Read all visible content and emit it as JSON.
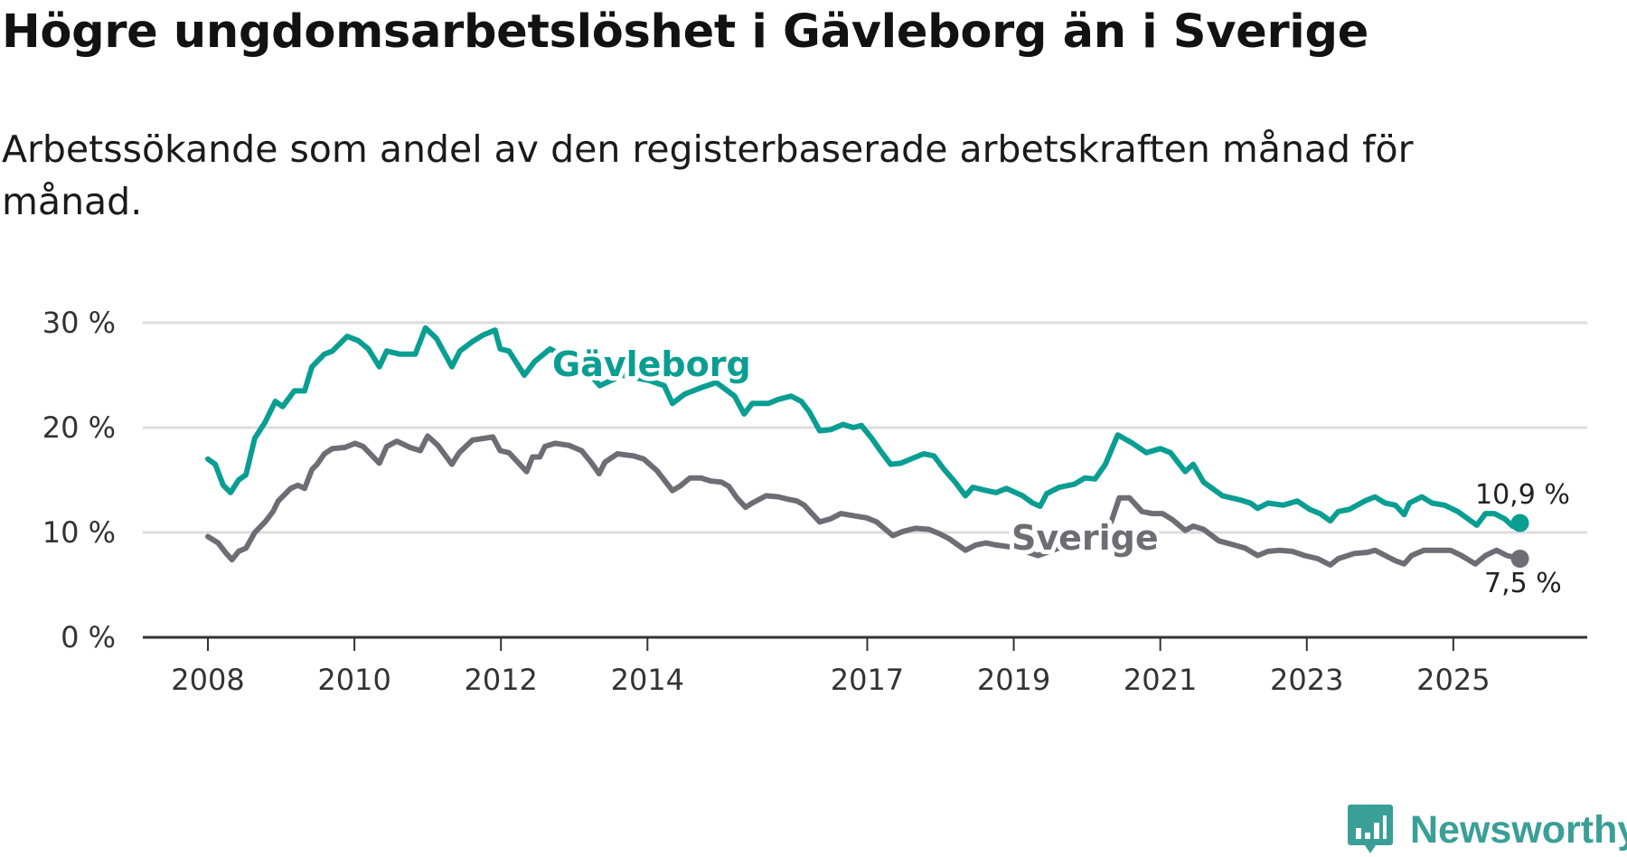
{
  "header": {
    "title": "Högre ungdomsarbetslöshet i Gävleborg än i Sverige",
    "subtitle": "Arbetssökande som andel av den registerbaserade arbetskraften månad för månad."
  },
  "brand": {
    "name": "Newsworthy",
    "icon": "newsworthy-logo-icon",
    "color": "#3a9f97"
  },
  "chart_data": {
    "type": "line",
    "title": "Högre ungdomsarbetslöshet i Gävleborg än i Sverige",
    "xlabel": "",
    "ylabel": "",
    "ylim": [
      0,
      30
    ],
    "xlim": [
      2007.55,
      2027.3
    ],
    "yticks": [
      {
        "v": 0,
        "label": "0 %"
      },
      {
        "v": 10,
        "label": "10 %"
      },
      {
        "v": 20,
        "label": "20 %"
      },
      {
        "v": 30,
        "label": "30 %"
      }
    ],
    "xticks": [
      {
        "v": 2008,
        "label": "2008"
      },
      {
        "v": 2010,
        "label": "2010"
      },
      {
        "v": 2012,
        "label": "2012"
      },
      {
        "v": 2014,
        "label": "2014"
      },
      {
        "v": 2017,
        "label": "2017"
      },
      {
        "v": 2019,
        "label": "2019"
      },
      {
        "v": 2021,
        "label": "2021"
      },
      {
        "v": 2023,
        "label": "2023"
      },
      {
        "v": 2025,
        "label": "2025"
      }
    ],
    "grid": true,
    "series": [
      {
        "name": "Gävleborg",
        "color": "#0a9e92",
        "end_label": "10,9 %",
        "points": [
          [
            2008.0,
            17
          ],
          [
            2008.1,
            16.5
          ],
          [
            2008.21,
            14.5
          ],
          [
            2008.31,
            13.8
          ],
          [
            2008.42,
            15
          ],
          [
            2008.52,
            15.5
          ],
          [
            2008.64,
            19
          ],
          [
            2008.78,
            20.5
          ],
          [
            2008.92,
            22.5
          ],
          [
            2009.02,
            22
          ],
          [
            2009.18,
            23.5
          ],
          [
            2009.32,
            23.5
          ],
          [
            2009.42,
            25.8
          ],
          [
            2009.59,
            27
          ],
          [
            2009.7,
            27.3
          ],
          [
            2009.9,
            28.7
          ],
          [
            2010.05,
            28.3
          ],
          [
            2010.19,
            27.5
          ],
          [
            2010.34,
            25.8
          ],
          [
            2010.44,
            27.3
          ],
          [
            2010.62,
            27
          ],
          [
            2010.83,
            27
          ],
          [
            2010.97,
            29.5
          ],
          [
            2011.12,
            28.5
          ],
          [
            2011.33,
            25.8
          ],
          [
            2011.44,
            27.3
          ],
          [
            2011.61,
            28.2
          ],
          [
            2011.75,
            28.8
          ],
          [
            2011.92,
            29.3
          ],
          [
            2011.99,
            27.5
          ],
          [
            2012.11,
            27.3
          ],
          [
            2012.32,
            25
          ],
          [
            2012.46,
            26.3
          ],
          [
            2012.67,
            27.5
          ],
          [
            2013.1,
            26
          ],
          [
            2013.35,
            24
          ],
          [
            2013.66,
            25
          ],
          [
            2014.02,
            24.5
          ],
          [
            2014.23,
            24
          ],
          [
            2014.34,
            22.3
          ],
          [
            2014.51,
            23.2
          ],
          [
            2014.73,
            23.8
          ],
          [
            2014.94,
            24.3
          ],
          [
            2015.19,
            23
          ],
          [
            2015.32,
            21.3
          ],
          [
            2015.43,
            22.3
          ],
          [
            2015.65,
            22.3
          ],
          [
            2015.79,
            22.7
          ],
          [
            2015.96,
            23
          ],
          [
            2016.1,
            22.5
          ],
          [
            2016.21,
            21.5
          ],
          [
            2016.35,
            19.7
          ],
          [
            2016.5,
            19.8
          ],
          [
            2016.67,
            20.3
          ],
          [
            2016.81,
            20
          ],
          [
            2016.92,
            20.2
          ],
          [
            2017.06,
            19
          ],
          [
            2017.18,
            17.8
          ],
          [
            2017.32,
            16.5
          ],
          [
            2017.46,
            16.6
          ],
          [
            2017.63,
            17.1
          ],
          [
            2017.77,
            17.5
          ],
          [
            2017.91,
            17.3
          ],
          [
            2018.05,
            16
          ],
          [
            2018.2,
            14.8
          ],
          [
            2018.34,
            13.5
          ],
          [
            2018.44,
            14.3
          ],
          [
            2018.62,
            14
          ],
          [
            2018.76,
            13.8
          ],
          [
            2018.9,
            14.2
          ],
          [
            2019.12,
            13.5
          ],
          [
            2019.26,
            12.8
          ],
          [
            2019.36,
            12.5
          ],
          [
            2019.45,
            13.7
          ],
          [
            2019.62,
            14.3
          ],
          [
            2019.83,
            14.6
          ],
          [
            2019.97,
            15.2
          ],
          [
            2020.11,
            15.1
          ],
          [
            2020.25,
            16.5
          ],
          [
            2020.42,
            19.3
          ],
          [
            2020.6,
            18.6
          ],
          [
            2020.81,
            17.6
          ],
          [
            2021.0,
            18
          ],
          [
            2021.14,
            17.6
          ],
          [
            2021.34,
            15.8
          ],
          [
            2021.45,
            16.5
          ],
          [
            2021.59,
            14.8
          ],
          [
            2021.85,
            13.5
          ],
          [
            2022.09,
            13.1
          ],
          [
            2022.23,
            12.8
          ],
          [
            2022.33,
            12.3
          ],
          [
            2022.47,
            12.8
          ],
          [
            2022.68,
            12.6
          ],
          [
            2022.87,
            13
          ],
          [
            2023.04,
            12.2
          ],
          [
            2023.18,
            11.8
          ],
          [
            2023.32,
            11.1
          ],
          [
            2023.43,
            12
          ],
          [
            2023.58,
            12.2
          ],
          [
            2023.79,
            13
          ],
          [
            2023.93,
            13.4
          ],
          [
            2024.07,
            12.8
          ],
          [
            2024.21,
            12.6
          ],
          [
            2024.33,
            11.7
          ],
          [
            2024.4,
            12.8
          ],
          [
            2024.57,
            13.4
          ],
          [
            2024.71,
            12.8
          ],
          [
            2024.88,
            12.6
          ],
          [
            2025.06,
            12
          ],
          [
            2025.2,
            11.3
          ],
          [
            2025.32,
            10.7
          ],
          [
            2025.44,
            11.8
          ],
          [
            2025.56,
            11.8
          ],
          [
            2025.7,
            11.3
          ],
          [
            2025.81,
            10.6
          ],
          [
            2025.91,
            10.9
          ]
        ]
      },
      {
        "name": "Sverige",
        "color": "#6e6d75",
        "end_label": "7,5 %",
        "points": [
          [
            2008.0,
            9.6
          ],
          [
            2008.14,
            9
          ],
          [
            2008.25,
            8
          ],
          [
            2008.33,
            7.4
          ],
          [
            2008.42,
            8.2
          ],
          [
            2008.52,
            8.5
          ],
          [
            2008.64,
            10
          ],
          [
            2008.78,
            11
          ],
          [
            2008.89,
            12
          ],
          [
            2008.96,
            13
          ],
          [
            2009.13,
            14.2
          ],
          [
            2009.23,
            14.5
          ],
          [
            2009.32,
            14.2
          ],
          [
            2009.42,
            16
          ],
          [
            2009.49,
            16.5
          ],
          [
            2009.59,
            17.5
          ],
          [
            2009.7,
            18
          ],
          [
            2009.87,
            18.1
          ],
          [
            2010.01,
            18.5
          ],
          [
            2010.12,
            18.2
          ],
          [
            2010.34,
            16.6
          ],
          [
            2010.44,
            18.2
          ],
          [
            2010.58,
            18.7
          ],
          [
            2010.76,
            18.1
          ],
          [
            2010.9,
            17.8
          ],
          [
            2011.0,
            19.2
          ],
          [
            2011.14,
            18.3
          ],
          [
            2011.33,
            16.5
          ],
          [
            2011.43,
            17.6
          ],
          [
            2011.61,
            18.8
          ],
          [
            2011.89,
            19.1
          ],
          [
            2011.99,
            17.8
          ],
          [
            2012.11,
            17.6
          ],
          [
            2012.35,
            15.8
          ],
          [
            2012.43,
            17.2
          ],
          [
            2012.53,
            17.2
          ],
          [
            2012.6,
            18.2
          ],
          [
            2012.74,
            18.5
          ],
          [
            2012.93,
            18.3
          ],
          [
            2013.1,
            17.8
          ],
          [
            2013.24,
            16.6
          ],
          [
            2013.34,
            15.6
          ],
          [
            2013.42,
            16.7
          ],
          [
            2013.59,
            17.5
          ],
          [
            2013.81,
            17.3
          ],
          [
            2013.95,
            17
          ],
          [
            2014.13,
            15.9
          ],
          [
            2014.23,
            15
          ],
          [
            2014.34,
            14
          ],
          [
            2014.44,
            14.4
          ],
          [
            2014.58,
            15.2
          ],
          [
            2014.73,
            15.2
          ],
          [
            2014.87,
            14.9
          ],
          [
            2015.01,
            14.8
          ],
          [
            2015.11,
            14.4
          ],
          [
            2015.22,
            13.3
          ],
          [
            2015.34,
            12.4
          ],
          [
            2015.43,
            12.8
          ],
          [
            2015.62,
            13.5
          ],
          [
            2015.79,
            13.4
          ],
          [
            2015.9,
            13.2
          ],
          [
            2016.04,
            13
          ],
          [
            2016.14,
            12.6
          ],
          [
            2016.35,
            11
          ],
          [
            2016.5,
            11.3
          ],
          [
            2016.64,
            11.8
          ],
          [
            2016.81,
            11.6
          ],
          [
            2016.99,
            11.4
          ],
          [
            2017.13,
            11
          ],
          [
            2017.35,
            9.7
          ],
          [
            2017.49,
            10.1
          ],
          [
            2017.66,
            10.4
          ],
          [
            2017.84,
            10.3
          ],
          [
            2017.98,
            9.9
          ],
          [
            2018.12,
            9.4
          ],
          [
            2018.34,
            8.3
          ],
          [
            2018.48,
            8.8
          ],
          [
            2018.62,
            9
          ],
          [
            2018.76,
            8.8
          ],
          [
            2018.97,
            8.6
          ],
          [
            2019.33,
            7.8
          ],
          [
            2019.61,
            8.5
          ],
          [
            2020.04,
            9.5
          ],
          [
            2020.33,
            11
          ],
          [
            2020.44,
            13.3
          ],
          [
            2020.58,
            13.3
          ],
          [
            2020.75,
            12
          ],
          [
            2020.89,
            11.8
          ],
          [
            2021.03,
            11.8
          ],
          [
            2021.17,
            11.2
          ],
          [
            2021.34,
            10.2
          ],
          [
            2021.45,
            10.6
          ],
          [
            2021.59,
            10.3
          ],
          [
            2021.8,
            9.2
          ],
          [
            2022.01,
            8.8
          ],
          [
            2022.16,
            8.5
          ],
          [
            2022.33,
            7.8
          ],
          [
            2022.47,
            8.2
          ],
          [
            2022.63,
            8.3
          ],
          [
            2022.8,
            8.2
          ],
          [
            2022.97,
            7.8
          ],
          [
            2023.15,
            7.5
          ],
          [
            2023.32,
            6.9
          ],
          [
            2023.43,
            7.5
          ],
          [
            2023.65,
            8
          ],
          [
            2023.83,
            8.1
          ],
          [
            2023.93,
            8.3
          ],
          [
            2024.07,
            7.8
          ],
          [
            2024.21,
            7.3
          ],
          [
            2024.33,
            7
          ],
          [
            2024.43,
            7.8
          ],
          [
            2024.6,
            8.3
          ],
          [
            2024.78,
            8.3
          ],
          [
            2024.96,
            8.3
          ],
          [
            2025.11,
            7.8
          ],
          [
            2025.3,
            7
          ],
          [
            2025.44,
            7.8
          ],
          [
            2025.59,
            8.3
          ],
          [
            2025.73,
            7.8
          ],
          [
            2025.91,
            7.5
          ]
        ]
      }
    ],
    "annotations": [
      {
        "text": "Gävleborg",
        "series": "Gävleborg"
      },
      {
        "text": "Sverige",
        "series": "Sverige"
      }
    ]
  }
}
